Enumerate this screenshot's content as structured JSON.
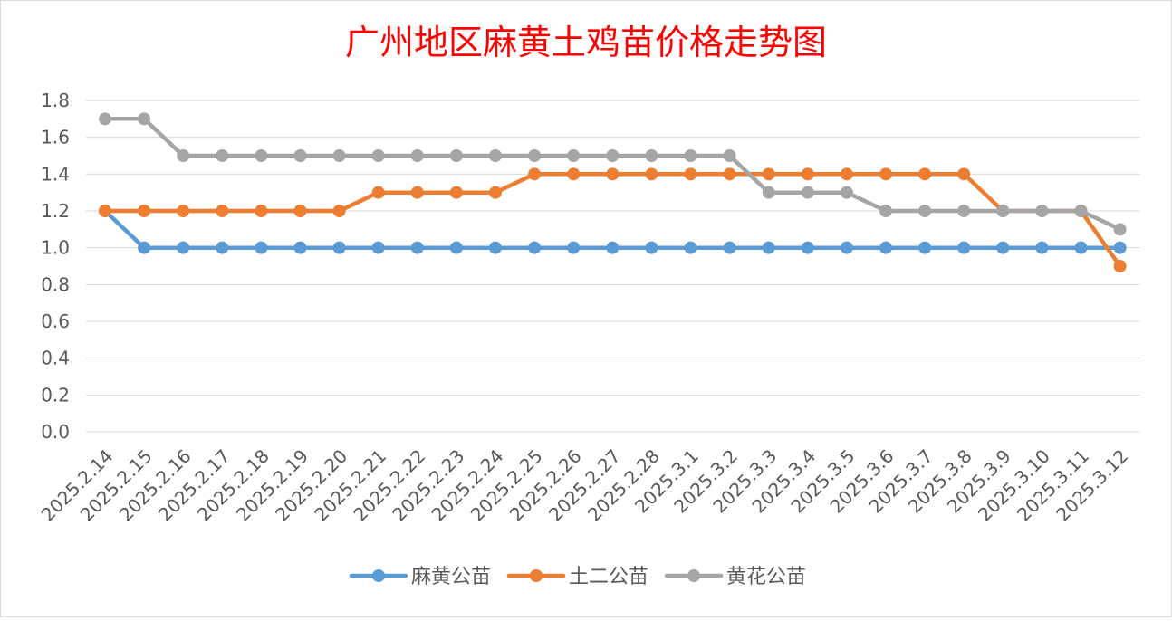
{
  "chart_data": {
    "type": "line",
    "title": "广州地区麻黄土鸡苗价格走势图",
    "xlabel": "",
    "ylabel": "",
    "categories": [
      "2025.2.14",
      "2025.2.15",
      "2025.2.16",
      "2025.2.17",
      "2025.2.18",
      "2025.2.19",
      "2025.2.20",
      "2025.2.21",
      "2025.2.22",
      "2025.2.23",
      "2025.2.24",
      "2025.2.25",
      "2025.2.26",
      "2025.2.27",
      "2025.2.28",
      "2025.3.1",
      "2025.3.2",
      "2025.3.3",
      "2025.3.4",
      "2025.3.5",
      "2025.3.6",
      "2025.3.7",
      "2025.3.8",
      "2025.3.9",
      "2025.3.10",
      "2025.3.11",
      "2025.3.12"
    ],
    "y_ticks": [
      "0.0",
      "0.2",
      "0.4",
      "0.6",
      "0.8",
      "1.0",
      "1.2",
      "1.4",
      "1.6",
      "1.8"
    ],
    "ylim": [
      0,
      1.8
    ],
    "grid": true,
    "legend_position": "bottom",
    "title_color": "#ff0000",
    "series": [
      {
        "name": "麻黄公苗",
        "color": "#5b9bd5",
        "values": [
          1.2,
          1.0,
          1.0,
          1.0,
          1.0,
          1.0,
          1.0,
          1.0,
          1.0,
          1.0,
          1.0,
          1.0,
          1.0,
          1.0,
          1.0,
          1.0,
          1.0,
          1.0,
          1.0,
          1.0,
          1.0,
          1.0,
          1.0,
          1.0,
          1.0,
          1.0,
          1.0
        ]
      },
      {
        "name": "土二公苗",
        "color": "#ed7d31",
        "values": [
          1.2,
          1.2,
          1.2,
          1.2,
          1.2,
          1.2,
          1.2,
          1.3,
          1.3,
          1.3,
          1.3,
          1.4,
          1.4,
          1.4,
          1.4,
          1.4,
          1.4,
          1.4,
          1.4,
          1.4,
          1.4,
          1.4,
          1.4,
          1.2,
          1.2,
          1.2,
          0.9
        ]
      },
      {
        "name": "黄花公苗",
        "color": "#a5a5a5",
        "values": [
          1.7,
          1.7,
          1.5,
          1.5,
          1.5,
          1.5,
          1.5,
          1.5,
          1.5,
          1.5,
          1.5,
          1.5,
          1.5,
          1.5,
          1.5,
          1.5,
          1.5,
          1.3,
          1.3,
          1.3,
          1.2,
          1.2,
          1.2,
          1.2,
          1.2,
          1.2,
          1.1
        ]
      }
    ]
  }
}
